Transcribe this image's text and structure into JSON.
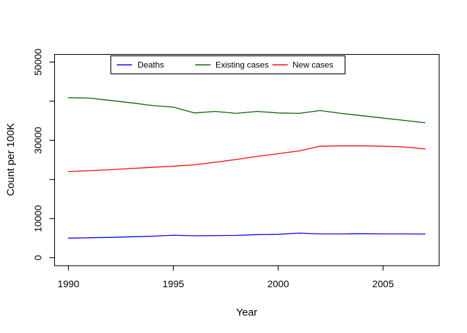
{
  "figure": {
    "background": "#ffffff",
    "axis_color": "#000000"
  },
  "chart_data": {
    "type": "line",
    "title": "",
    "xlabel": "Year",
    "ylabel": "Count per 100K",
    "grid": false,
    "legend_position": "top-center-inside",
    "xlim": [
      1989.32,
      2007.68
    ],
    "ylim": [
      0,
      50000
    ],
    "x_tick_values": [
      1990,
      1995,
      2000,
      2005
    ],
    "x_tick_labels": [
      "1990",
      "1995",
      "2000",
      "2005"
    ],
    "y_tick_values": [
      0,
      10000,
      20000,
      30000,
      40000,
      50000
    ],
    "y_tick_labeled_values": [
      0,
      10000,
      30000,
      50000
    ],
    "y_tick_labels": [
      "0",
      "10000",
      "30000",
      "50000"
    ],
    "x": [
      1990,
      1991,
      1992,
      1993,
      1994,
      1995,
      1996,
      1997,
      1998,
      1999,
      2000,
      2001,
      2002,
      2003,
      2004,
      2005,
      2006,
      2007
    ],
    "series": [
      {
        "name": "Deaths",
        "color": "#0000ff",
        "values": [
          5000,
          5100,
          5200,
          5350,
          5500,
          5750,
          5600,
          5650,
          5700,
          5900,
          6000,
          6300,
          6100,
          6100,
          6150,
          6100,
          6100,
          6050
        ]
      },
      {
        "name": "Existing cases",
        "color": "#006400",
        "values": [
          40900,
          40800,
          40200,
          39600,
          38900,
          38500,
          37000,
          37400,
          36900,
          37400,
          37000,
          36900,
          37600,
          36900,
          36300,
          35700,
          35100,
          34500
        ]
      },
      {
        "name": "New cases",
        "color": "#ff0000",
        "values": [
          22000,
          22250,
          22500,
          22800,
          23100,
          23400,
          23750,
          24400,
          25100,
          25900,
          26600,
          27300,
          28500,
          28600,
          28600,
          28500,
          28300,
          27800
        ]
      }
    ]
  }
}
